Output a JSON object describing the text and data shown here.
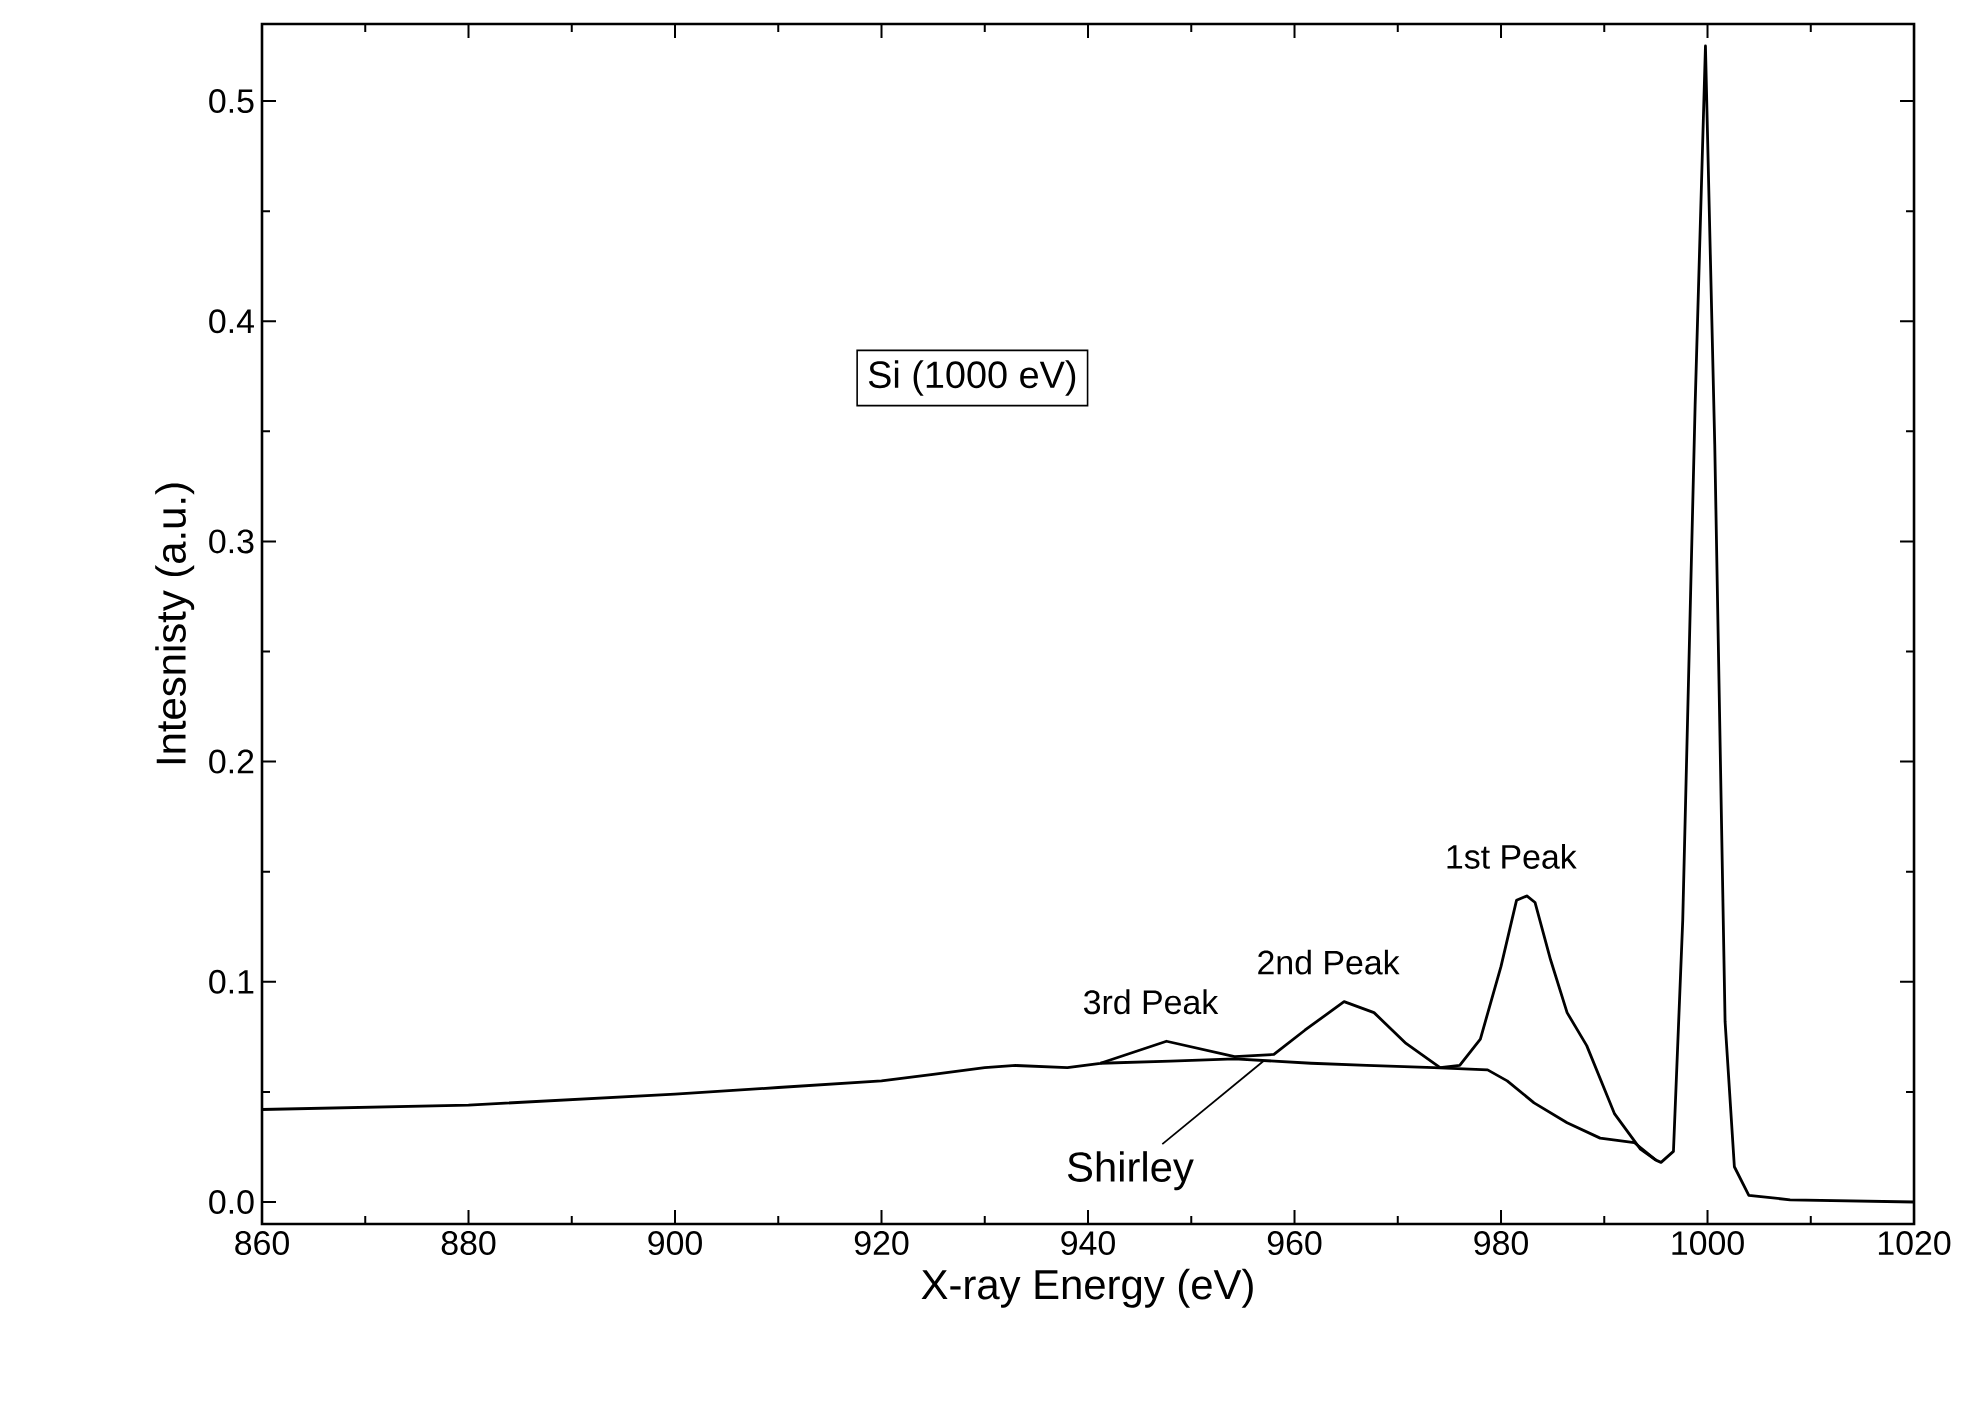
{
  "chart_data": {
    "type": "line",
    "xlabel": "X-ray Energy (eV)",
    "ylabel": "Intesnisty (a.u.)",
    "xlim": [
      860,
      1020
    ],
    "ylim": [
      -0.01,
      0.535
    ],
    "xticks": [
      860,
      880,
      900,
      920,
      940,
      960,
      980,
      1000,
      1020
    ],
    "yticks": [
      {
        "value": 0,
        "label": "0.0"
      },
      0.1,
      0.2,
      0.3,
      0.4,
      0.5
    ],
    "grid": false,
    "marker": "none",
    "line_style": "solid",
    "series": [
      {
        "color": "#000000",
        "x": [
          860,
          880,
          900,
          910,
          920,
          925,
          930,
          933,
          938,
          941.2,
          947.6,
          954.2,
          958,
          961,
          964.8,
          967.7,
          970.8,
          974.1,
          976,
          978,
          980,
          981.5,
          982.5,
          983.3,
          984.8,
          986.4,
          988.3,
          991,
          993.5,
          995,
          995.5,
          996.7,
          997.6,
          998.8,
          999.8,
          1000.7,
          1001.7,
          1002.6,
          1004,
          1008,
          1020
        ],
        "values": [
          0.042,
          0.044,
          0.049,
          0.052,
          0.055,
          0.058,
          0.061,
          0.062,
          0.061,
          0.063,
          0.073,
          0.066,
          0.067,
          0.078,
          0.091,
          0.086,
          0.072,
          0.061,
          0.062,
          0.074,
          0.107,
          0.137,
          0.139,
          0.136,
          0.11,
          0.086,
          0.071,
          0.04,
          0.024,
          0.019,
          0.018,
          0.023,
          0.128,
          0.362,
          0.525,
          0.344,
          0.082,
          0.016,
          0.003,
          0.001,
          0.0
        ]
      },
      {
        "color": "#000000",
        "x": [
          941.2,
          948,
          954.2,
          961.6,
          967,
          973.5,
          978.7,
          980.6,
          983.2,
          986.4,
          989.6,
          992.9,
          995
        ],
        "values": [
          0.063,
          0.064,
          0.065,
          0.063,
          0.062,
          0.061,
          0.06,
          0.055,
          0.045,
          0.036,
          0.029,
          0.027,
          0.019
        ]
      }
    ],
    "annotations": [
      "Si (1000 eV)",
      {
        "text": "1st Peak",
        "x": 982.5,
        "y": 0.139
      },
      {
        "text": "2nd Peak",
        "x": 964.8,
        "y": 0.091
      },
      {
        "text": "3rd Peak",
        "x": 947.6,
        "y": 0.073
      },
      {
        "text": "Shirley",
        "x": 957,
        "y": 0.064
      }
    ]
  }
}
